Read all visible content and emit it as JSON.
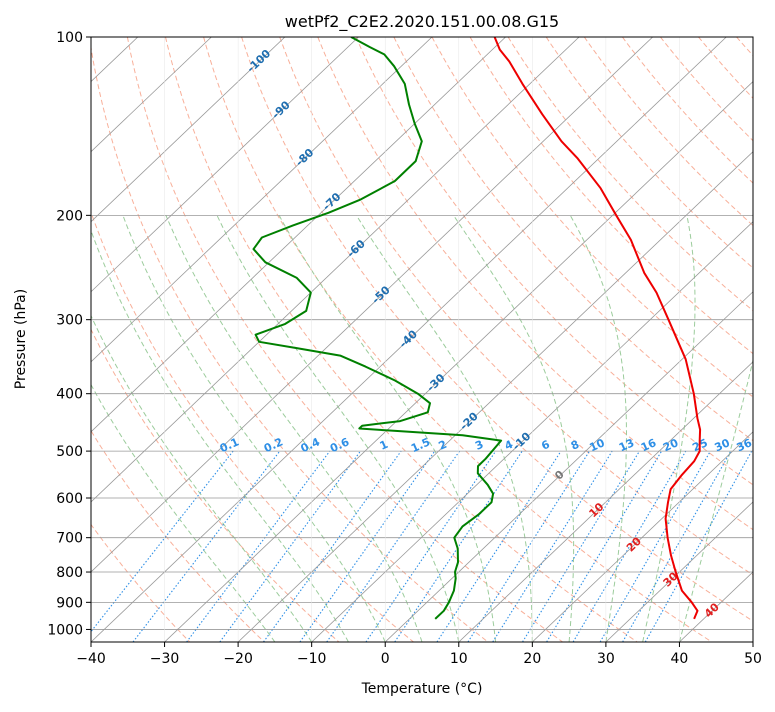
{
  "chart_data": {
    "type": "line",
    "subtype": "skew-T log-P diagram",
    "title": "wetPf2_C2E2.2020.151.00.08.G15",
    "xlabel": "Temperature (°C)",
    "ylabel": "Pressure (hPa)",
    "xlim": [
      -40,
      50
    ],
    "ylim_hpa": [
      1050,
      100
    ],
    "y_scale": "log",
    "x_ticks": [
      "−40",
      "−30",
      "−20",
      "−10",
      "0",
      "10",
      "20",
      "30",
      "40",
      "50"
    ],
    "y_ticks": [
      {
        "p": 100,
        "label": "100"
      },
      {
        "p": 200,
        "label": "200"
      },
      {
        "p": 300,
        "label": "300"
      },
      {
        "p": 400,
        "label": "400"
      },
      {
        "p": 500,
        "label": "500"
      },
      {
        "p": 600,
        "label": "600"
      },
      {
        "p": 700,
        "label": "700"
      },
      {
        "p": 800,
        "label": "800"
      },
      {
        "p": 900,
        "label": "900"
      },
      {
        "p": 1000,
        "label": "1000"
      }
    ],
    "grid": true,
    "isotherms": [
      -120,
      -110,
      -100,
      -90,
      -80,
      -70,
      -60,
      -50,
      -40,
      -30,
      -20,
      -10,
      0,
      10,
      20,
      30,
      40,
      50
    ],
    "isotherm_labels": [
      {
        "t": -100,
        "p": 110,
        "label": "-100"
      },
      {
        "t": -90,
        "p": 133,
        "label": "-90"
      },
      {
        "t": -80,
        "p": 160,
        "label": "-80"
      },
      {
        "t": -70,
        "p": 190,
        "label": "-70"
      },
      {
        "t": -60,
        "p": 228,
        "label": "-60"
      },
      {
        "t": -50,
        "p": 273,
        "label": "-50"
      },
      {
        "t": -40,
        "p": 324,
        "label": "-40"
      },
      {
        "t": -30,
        "p": 384,
        "label": "-30"
      },
      {
        "t": -20,
        "p": 446,
        "label": "-20"
      },
      {
        "t": -10,
        "p": 482,
        "label": "-10"
      },
      {
        "t": 0,
        "p": 550,
        "label": "0"
      },
      {
        "t": 10,
        "p": 630,
        "label": "10"
      },
      {
        "t": 20,
        "p": 720,
        "label": "20"
      },
      {
        "t": 30,
        "p": 825,
        "label": "30"
      },
      {
        "t": 40,
        "p": 930,
        "label": "40"
      }
    ],
    "mixing_ratio_labels": [
      "0.1",
      "0.2",
      "0.4",
      "0.6",
      "1",
      "1.5",
      "2",
      "3",
      "4",
      "6",
      "8",
      "10",
      "13",
      "16",
      "20",
      "25",
      "30",
      "36"
    ],
    "mixing_ratio_values": [
      0.1,
      0.2,
      0.4,
      0.6,
      1,
      1.5,
      2,
      3,
      4,
      6,
      8,
      10,
      13,
      16,
      20,
      25,
      30,
      36
    ],
    "mixing_ratio_label_x": [
      -21,
      -15,
      -10,
      -6,
      0,
      5,
      8,
      13,
      17,
      22,
      26,
      29,
      33,
      36,
      39,
      43,
      46,
      49
    ],
    "dry_adiabats_theta_c": [
      -30,
      -20,
      -10,
      0,
      10,
      20,
      30,
      40,
      50,
      60,
      70,
      80,
      90,
      100,
      110,
      120,
      130,
      140,
      150,
      160,
      170,
      180,
      190,
      200
    ],
    "moist_adiabats_start_c": [
      -15,
      -10,
      -5,
      0,
      5,
      10,
      15,
      20,
      25,
      30,
      35,
      40
    ],
    "colors": {
      "temperature": "#ee0000",
      "dewpoint": "#008000",
      "isotherm": "#999999",
      "dry_adiabat": "#f8b09a",
      "moist_adiabat": "#9ccc9c",
      "mixing_ratio": "#2e8fe6",
      "isotherm_label": "#1f6eb0",
      "isotherm_label_warm": "#e02020",
      "zero_label": "#777777"
    },
    "series": [
      {
        "name": "Temperature",
        "points": [
          {
            "p": 960,
            "t": 38.7
          },
          {
            "p": 930,
            "t": 38.0
          },
          {
            "p": 900,
            "t": 36.0
          },
          {
            "p": 860,
            "t": 33.0
          },
          {
            "p": 800,
            "t": 29.5
          },
          {
            "p": 750,
            "t": 26.5
          },
          {
            "p": 700,
            "t": 23.5
          },
          {
            "p": 650,
            "t": 20.5
          },
          {
            "p": 610,
            "t": 18.5
          },
          {
            "p": 580,
            "t": 17.0
          },
          {
            "p": 550,
            "t": 16.5
          },
          {
            "p": 520,
            "t": 16.2
          },
          {
            "p": 500,
            "t": 15.5
          },
          {
            "p": 480,
            "t": 14.0
          },
          {
            "p": 460,
            "t": 12.5
          },
          {
            "p": 440,
            "t": 10.5
          },
          {
            "p": 400,
            "t": 6.5
          },
          {
            "p": 350,
            "t": 0.5
          },
          {
            "p": 300,
            "t": -7.5
          },
          {
            "p": 270,
            "t": -13.0
          },
          {
            "p": 250,
            "t": -17.5
          },
          {
            "p": 220,
            "t": -24.0
          },
          {
            "p": 200,
            "t": -29.5
          },
          {
            "p": 180,
            "t": -35.5
          },
          {
            "p": 160,
            "t": -43.0
          },
          {
            "p": 150,
            "t": -47.5
          },
          {
            "p": 135,
            "t": -54.0
          },
          {
            "p": 120,
            "t": -61.0
          },
          {
            "p": 110,
            "t": -66.0
          },
          {
            "p": 105,
            "t": -69.0
          },
          {
            "p": 100,
            "t": -71.5
          }
        ]
      },
      {
        "name": "Dewpoint",
        "points": [
          {
            "p": 960,
            "t": 3.5
          },
          {
            "p": 930,
            "t": 3.5
          },
          {
            "p": 900,
            "t": 3.0
          },
          {
            "p": 860,
            "t": 2.0
          },
          {
            "p": 820,
            "t": 0.5
          },
          {
            "p": 800,
            "t": -0.5
          },
          {
            "p": 770,
            "t": -1.5
          },
          {
            "p": 730,
            "t": -3.5
          },
          {
            "p": 700,
            "t": -5.5
          },
          {
            "p": 670,
            "t": -6.0
          },
          {
            "p": 640,
            "t": -5.5
          },
          {
            "p": 610,
            "t": -5.5
          },
          {
            "p": 590,
            "t": -6.5
          },
          {
            "p": 570,
            "t": -8.5
          },
          {
            "p": 545,
            "t": -11.5
          },
          {
            "p": 530,
            "t": -12.5
          },
          {
            "p": 515,
            "t": -12.5
          },
          {
            "p": 480,
            "t": -13.0
          },
          {
            "p": 470,
            "t": -19.0
          },
          {
            "p": 462,
            "t": -29.0
          },
          {
            "p": 458,
            "t": -34.0
          },
          {
            "p": 453,
            "t": -34.0
          },
          {
            "p": 445,
            "t": -29.5
          },
          {
            "p": 430,
            "t": -27.0
          },
          {
            "p": 415,
            "t": -28.0
          },
          {
            "p": 400,
            "t": -31.0
          },
          {
            "p": 380,
            "t": -36.0
          },
          {
            "p": 360,
            "t": -42.0
          },
          {
            "p": 345,
            "t": -47.0
          },
          {
            "p": 335,
            "t": -54.0
          },
          {
            "p": 327,
            "t": -60.0
          },
          {
            "p": 318,
            "t": -61.5
          },
          {
            "p": 305,
            "t": -59.0
          },
          {
            "p": 290,
            "t": -58.0
          },
          {
            "p": 270,
            "t": -60.0
          },
          {
            "p": 255,
            "t": -64.0
          },
          {
            "p": 240,
            "t": -70.5
          },
          {
            "p": 228,
            "t": -74.0
          },
          {
            "p": 218,
            "t": -74.5
          },
          {
            "p": 208,
            "t": -72.0
          },
          {
            "p": 198,
            "t": -69.0
          },
          {
            "p": 188,
            "t": -66.5
          },
          {
            "p": 175,
            "t": -64.5
          },
          {
            "p": 162,
            "t": -64.5
          },
          {
            "p": 150,
            "t": -66.5
          },
          {
            "p": 140,
            "t": -70.0
          },
          {
            "p": 130,
            "t": -73.5
          },
          {
            "p": 120,
            "t": -77.0
          },
          {
            "p": 112,
            "t": -81.0
          },
          {
            "p": 107,
            "t": -84.0
          },
          {
            "p": 104,
            "t": -87.0
          },
          {
            "p": 100,
            "t": -91.0
          }
        ]
      }
    ]
  }
}
